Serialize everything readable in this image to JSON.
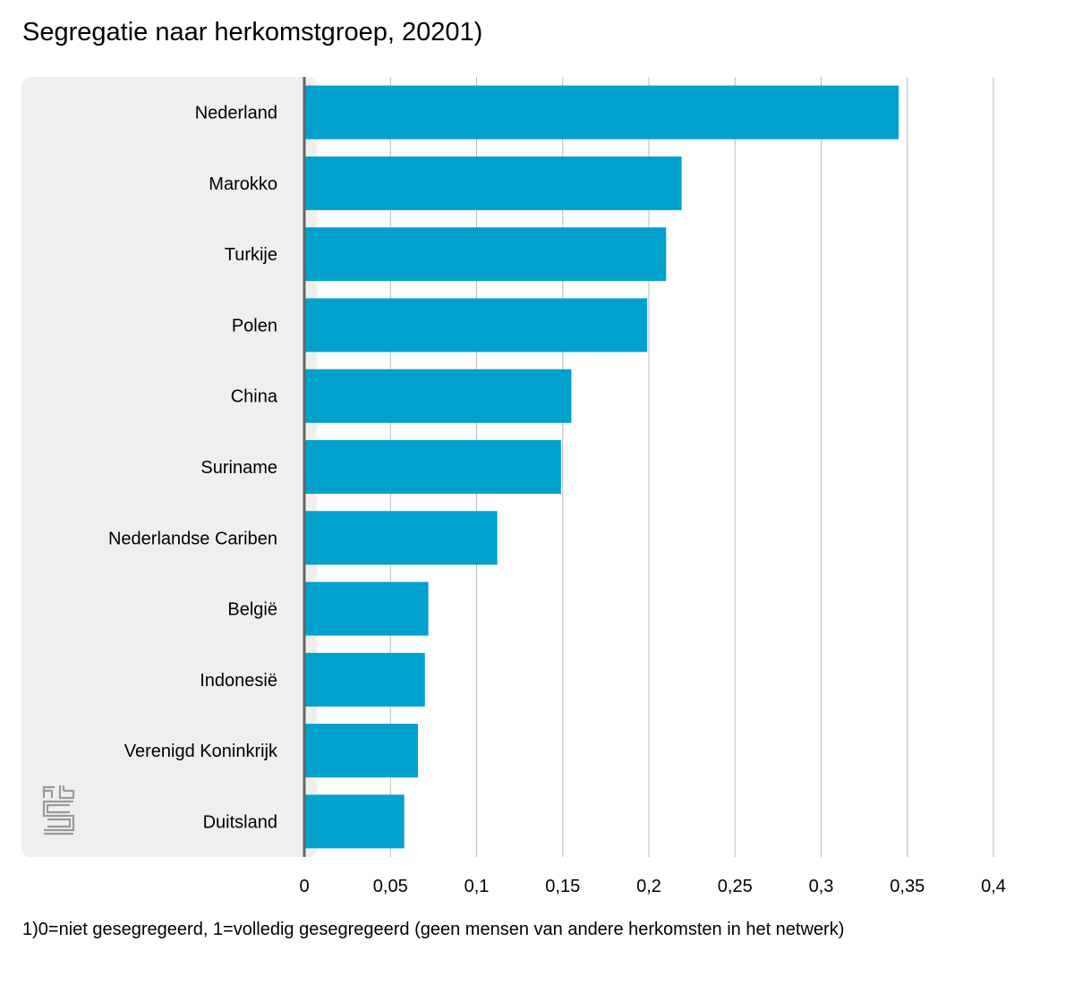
{
  "title": "Segregatie naar herkomstgroep, 20201)",
  "footnote": "1)0=niet gesegregeerd, 1=volledig gesegregeerd (geen mensen van andere herkomsten in het netwerk)",
  "chart_data": {
    "type": "bar",
    "orientation": "horizontal",
    "title": "Segregatie naar herkomstgroep, 20201)",
    "xlabel": "",
    "ylabel": "",
    "categories": [
      "Nederland",
      "Marokko",
      "Turkije",
      "Polen",
      "China",
      "Suriname",
      "Nederlandse Cariben",
      "België",
      "Indonesië",
      "Verenigd Koninkrijk",
      "Duitsland"
    ],
    "values": [
      0.345,
      0.219,
      0.21,
      0.199,
      0.155,
      0.149,
      0.112,
      0.072,
      0.07,
      0.066,
      0.058
    ],
    "xlim": [
      0,
      0.4
    ],
    "ticks": [
      0,
      0.05,
      0.1,
      0.15,
      0.2,
      0.25,
      0.3,
      0.35,
      0.4
    ],
    "tick_labels": [
      "0",
      "0,05",
      "0,1",
      "0,15",
      "0,2",
      "0,25",
      "0,3",
      "0,35",
      "0,4"
    ],
    "grid": true,
    "bar_color": "#00a1cd",
    "label_panel_color": "#efefef",
    "axis_color": "#666666",
    "grid_color": "#bbbbbb",
    "logo": "cbs-logo"
  }
}
